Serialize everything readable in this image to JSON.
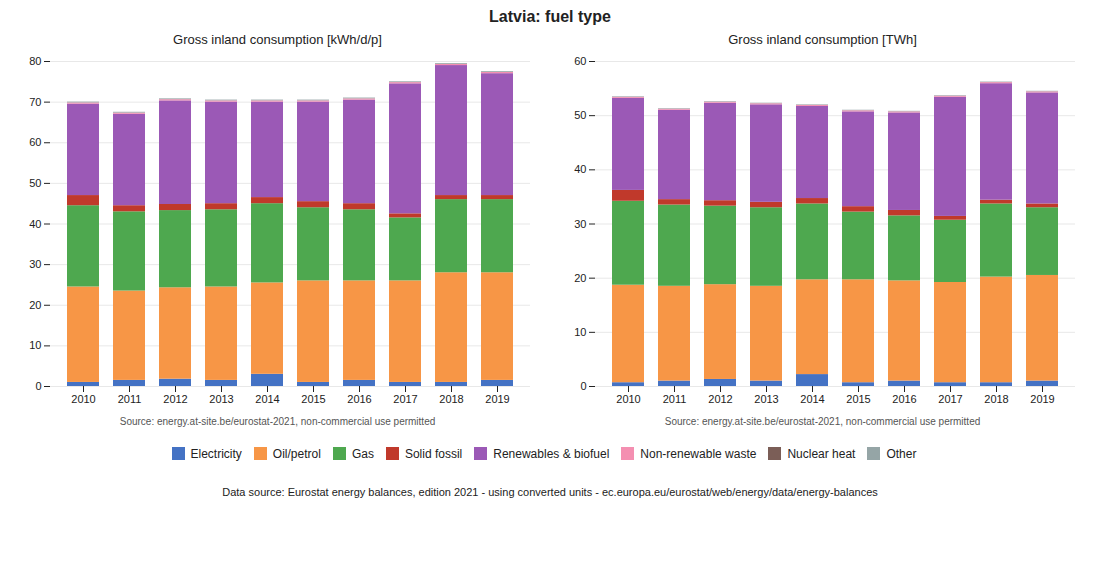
{
  "title": "Latvia: fuel type",
  "annotations": [
    "Data source: Eurostat energy balances, edition 2021 - using converted units - ec.europa.eu/eurostat/web/energy/data/energy-balances"
  ],
  "chart_data": [
    {
      "type": "bar",
      "stacked": true,
      "grid": true,
      "legend": "bottom",
      "title": "Gross inland consumption [kWh/d/p]",
      "annotations": [
        "Source: energy.at-site.be/eurostat-2021, non-commercial use permitted"
      ],
      "categories": [
        "2010",
        "2011",
        "2012",
        "2013",
        "2014",
        "2015",
        "2016",
        "2017",
        "2018",
        "2019"
      ],
      "ylim": [
        0,
        80
      ],
      "yticks": [
        0,
        10,
        20,
        30,
        40,
        50,
        60,
        70,
        80
      ],
      "series": [
        {
          "name": "Electricity",
          "color": "#4472c4",
          "values": [
            1.0,
            1.5,
            1.8,
            1.5,
            3.0,
            1.0,
            1.5,
            1.0,
            1.0,
            1.5
          ]
        },
        {
          "name": "Oil/petrol",
          "color": "#f79646",
          "values": [
            23.5,
            22.0,
            22.5,
            23.0,
            22.5,
            25.0,
            24.5,
            25.0,
            27.0,
            26.5
          ]
        },
        {
          "name": "Gas",
          "color": "#4ea84f",
          "values": [
            20.0,
            19.5,
            19.0,
            19.0,
            19.5,
            18.0,
            17.5,
            15.5,
            18.0,
            18.0
          ]
        },
        {
          "name": "Solid fossil",
          "color": "#c0392b",
          "values": [
            2.5,
            1.5,
            1.5,
            1.5,
            1.5,
            1.5,
            1.5,
            1.0,
            1.0,
            1.0
          ]
        },
        {
          "name": "Renewables & biofuel",
          "color": "#9b59b6",
          "values": [
            22.5,
            22.5,
            25.5,
            25.0,
            23.5,
            24.5,
            25.5,
            32.0,
            32.0,
            30.0
          ]
        },
        {
          "name": "Non-renewable waste",
          "color": "#f48fb1",
          "values": [
            0.3,
            0.3,
            0.3,
            0.3,
            0.3,
            0.3,
            0.3,
            0.3,
            0.3,
            0.3
          ]
        },
        {
          "name": "Nuclear heat",
          "color": "#7b5e57",
          "values": [
            0.0,
            0.0,
            0.0,
            0.0,
            0.0,
            0.0,
            0.0,
            0.0,
            0.0,
            0.0
          ]
        },
        {
          "name": "Other",
          "color": "#95a5a6",
          "values": [
            0.2,
            0.2,
            0.2,
            0.2,
            0.2,
            0.2,
            0.2,
            0.2,
            0.2,
            0.2
          ]
        }
      ]
    },
    {
      "type": "bar",
      "stacked": true,
      "grid": true,
      "legend": "bottom",
      "title": "Gross inland consumption [TWh]",
      "annotations": [
        "Source: energy.at-site.be/eurostat-2021, non-commercial use permitted"
      ],
      "categories": [
        "2010",
        "2011",
        "2012",
        "2013",
        "2014",
        "2015",
        "2016",
        "2017",
        "2018",
        "2019"
      ],
      "ylim": [
        0,
        60
      ],
      "yticks": [
        0,
        10,
        20,
        30,
        40,
        50,
        60
      ],
      "series": [
        {
          "name": "Electricity",
          "color": "#4472c4",
          "values": [
            0.7,
            1.0,
            1.3,
            1.0,
            2.2,
            0.7,
            1.0,
            0.7,
            0.7,
            1.0
          ]
        },
        {
          "name": "Oil/petrol",
          "color": "#f79646",
          "values": [
            18.0,
            17.5,
            17.5,
            17.5,
            17.5,
            19.0,
            18.5,
            18.5,
            19.5,
            19.5
          ]
        },
        {
          "name": "Gas",
          "color": "#4ea84f",
          "values": [
            15.5,
            15.0,
            14.5,
            14.5,
            14.0,
            12.5,
            12.0,
            11.5,
            13.5,
            12.5
          ]
        },
        {
          "name": "Solid fossil",
          "color": "#c0392b",
          "values": [
            2.0,
            1.0,
            1.0,
            1.0,
            1.0,
            1.0,
            1.0,
            0.7,
            0.7,
            0.7
          ]
        },
        {
          "name": "Renewables & biofuel",
          "color": "#9b59b6",
          "values": [
            17.0,
            16.5,
            18.0,
            18.0,
            17.0,
            17.5,
            18.0,
            22.0,
            21.5,
            20.5
          ]
        },
        {
          "name": "Non-renewable waste",
          "color": "#f48fb1",
          "values": [
            0.2,
            0.2,
            0.2,
            0.2,
            0.2,
            0.2,
            0.2,
            0.2,
            0.2,
            0.2
          ]
        },
        {
          "name": "Nuclear heat",
          "color": "#7b5e57",
          "values": [
            0.0,
            0.0,
            0.0,
            0.0,
            0.0,
            0.0,
            0.0,
            0.0,
            0.0,
            0.0
          ]
        },
        {
          "name": "Other",
          "color": "#95a5a6",
          "values": [
            0.1,
            0.1,
            0.1,
            0.1,
            0.1,
            0.1,
            0.1,
            0.1,
            0.1,
            0.1
          ]
        }
      ]
    }
  ]
}
